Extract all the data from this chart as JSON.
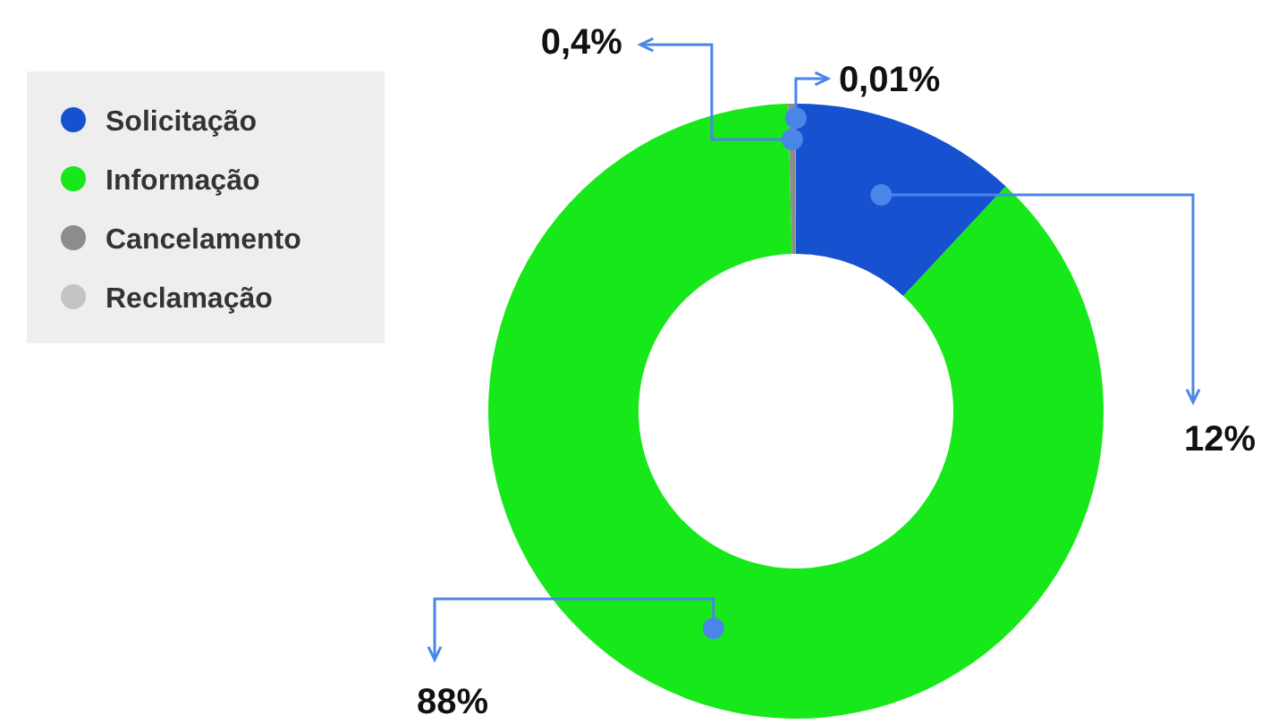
{
  "chart_data": {
    "type": "donut",
    "categories": [
      "Solicitação",
      "Informação",
      "Cancelamento",
      "Reclamação"
    ],
    "values": [
      12,
      88,
      0.4,
      0.01
    ],
    "colors": [
      "#1652d0",
      "#17e81a",
      "#8c8c8c",
      "#c4c4c4"
    ],
    "value_labels": [
      "12%",
      "88%",
      "0,4%",
      "0,01%"
    ],
    "legend": "left"
  }
}
